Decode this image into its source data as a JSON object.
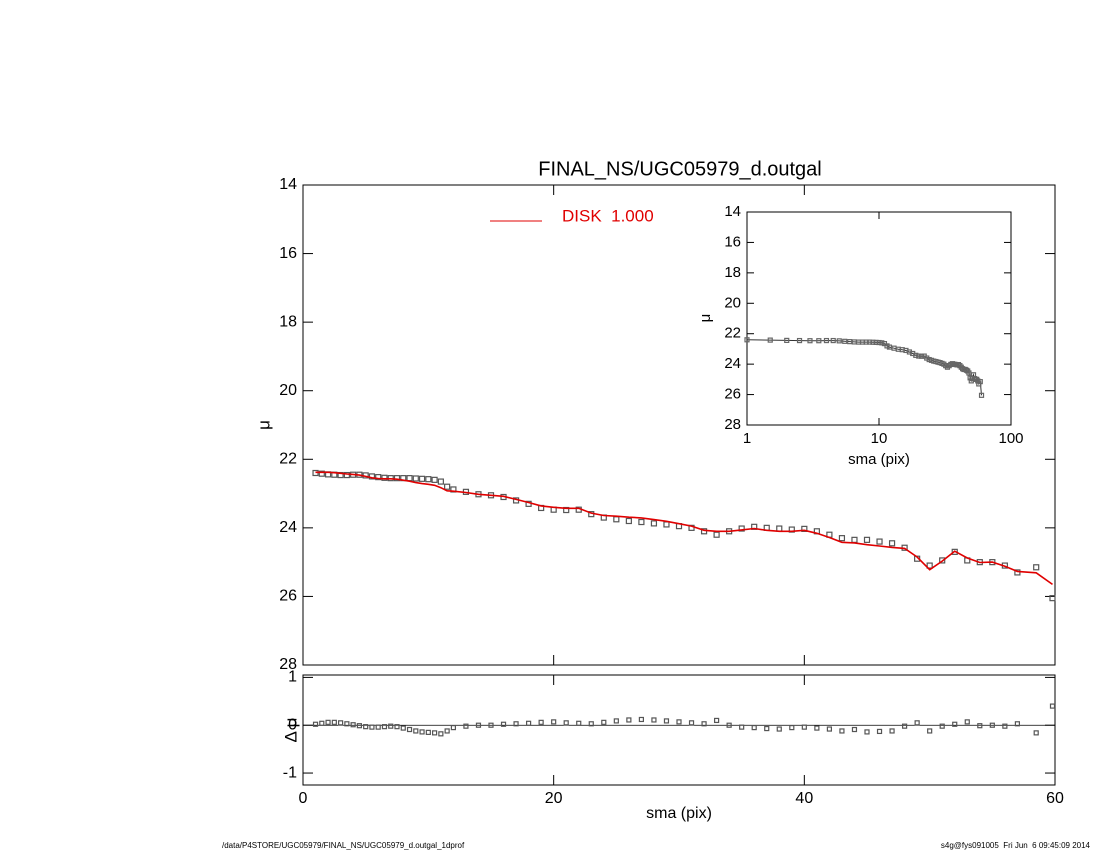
{
  "footer": {
    "left": "/data/P4STORE/UGC05979/FINAL_NS/UGC05979_d.outgal_1dprof",
    "right": "s4g@fys091005  Fri Jun  6 09:45:09 2014"
  },
  "chart_data": [
    {
      "type": "scatter",
      "title": "FINAL_NS/UGC05979_d.outgal",
      "ylabel": "μ",
      "xlim": [
        0,
        60
      ],
      "xticks": [
        0,
        20,
        40,
        60
      ],
      "xtick_labels": false,
      "ylim": [
        28,
        14
      ],
      "yticks": [
        14,
        16,
        18,
        20,
        22,
        24,
        26,
        28
      ],
      "legend": "top-center",
      "x": [
        1,
        1.5,
        2,
        2.5,
        3,
        3.5,
        4,
        4.5,
        5,
        5.5,
        6,
        6.5,
        7,
        7.5,
        8,
        8.5,
        9,
        9.5,
        10,
        10.5,
        11,
        11.5,
        12,
        13,
        14,
        15,
        16,
        17,
        18,
        19,
        20,
        21,
        22,
        23,
        24,
        25,
        26,
        27,
        28,
        29,
        30,
        31,
        32,
        33,
        34,
        35,
        36,
        37,
        38,
        39,
        40,
        41,
        42,
        43,
        44,
        45,
        46,
        47,
        48,
        49,
        50,
        51,
        52,
        53,
        54,
        55,
        56,
        57,
        58.5,
        59.8
      ],
      "series": [
        {
          "color": "#555555",
          "marker": "square",
          "values": [
            22.4,
            22.42,
            22.44,
            22.45,
            22.46,
            22.46,
            22.45,
            22.45,
            22.47,
            22.5,
            22.52,
            22.54,
            22.55,
            22.55,
            22.55,
            22.55,
            22.56,
            22.57,
            22.58,
            22.6,
            22.65,
            22.8,
            22.88,
            22.95,
            23.02,
            23.05,
            23.1,
            23.2,
            23.3,
            23.42,
            23.47,
            23.48,
            23.47,
            23.6,
            23.7,
            23.75,
            23.8,
            23.83,
            23.87,
            23.9,
            23.95,
            24.0,
            24.1,
            24.2,
            24.1,
            24.02,
            23.97,
            24.0,
            24.02,
            24.05,
            24.03,
            24.1,
            24.2,
            24.3,
            24.35,
            24.35,
            24.4,
            24.45,
            24.58,
            24.9,
            25.1,
            24.95,
            24.7,
            24.95,
            25.0,
            25.0,
            25.1,
            25.3,
            25.15,
            26.05
          ]
        },
        {
          "name": "DISK  1.000",
          "color": "#e00000",
          "marker": "line",
          "values": [
            22.38,
            22.38,
            22.38,
            22.39,
            22.41,
            22.43,
            22.44,
            22.46,
            22.5,
            22.54,
            22.56,
            22.57,
            22.57,
            22.58,
            22.61,
            22.64,
            22.68,
            22.71,
            22.73,
            22.76,
            22.83,
            22.92,
            22.93,
            22.97,
            23.02,
            23.05,
            23.08,
            23.17,
            23.26,
            23.36,
            23.4,
            23.43,
            23.43,
            23.57,
            23.64,
            23.66,
            23.69,
            23.71,
            23.76,
            23.81,
            23.88,
            23.95,
            24.07,
            24.1,
            24.1,
            24.06,
            24.02,
            24.07,
            24.1,
            24.1,
            24.07,
            24.16,
            24.28,
            24.42,
            24.44,
            24.49,
            24.53,
            24.57,
            24.6,
            24.85,
            25.22,
            24.97,
            24.68,
            24.88,
            25.01,
            25.0,
            25.12,
            25.27,
            25.31,
            25.65
          ]
        }
      ]
    },
    {
      "type": "scatter",
      "xlabel": "sma (pix)",
      "ylabel": "Δ μ",
      "xlim": [
        0,
        60
      ],
      "xticks": [
        0,
        20,
        40,
        60
      ],
      "ylim": [
        -1.25,
        1.05
      ],
      "yticks": [
        -1,
        0,
        1
      ],
      "zero_line": true,
      "color": "#555555",
      "values": [
        0.02,
        0.04,
        0.06,
        0.06,
        0.05,
        0.03,
        0.01,
        -0.01,
        -0.03,
        -0.04,
        -0.04,
        -0.03,
        -0.02,
        -0.03,
        -0.06,
        -0.09,
        -0.12,
        -0.14,
        -0.15,
        -0.16,
        -0.18,
        -0.12,
        -0.05,
        -0.02,
        0.0,
        0.0,
        0.02,
        0.03,
        0.04,
        0.06,
        0.07,
        0.05,
        0.04,
        0.03,
        0.06,
        0.09,
        0.11,
        0.12,
        0.11,
        0.09,
        0.07,
        0.05,
        0.03,
        0.1,
        0.0,
        -0.04,
        -0.05,
        -0.07,
        -0.08,
        -0.05,
        -0.04,
        -0.06,
        -0.08,
        -0.12,
        -0.09,
        -0.14,
        -0.13,
        -0.12,
        -0.02,
        0.05,
        -0.12,
        -0.02,
        0.02,
        0.07,
        -0.01,
        0.0,
        -0.02,
        0.03,
        -0.16,
        0.4
      ]
    },
    {
      "type": "scatter",
      "xlabel": "sma (pix)",
      "ylabel": "μ",
      "log_x": true,
      "xlim": [
        1,
        100
      ],
      "xticks": [
        1,
        10,
        100
      ],
      "ylim": [
        28,
        14
      ],
      "yticks": [
        14,
        16,
        18,
        20,
        22,
        24,
        26,
        28
      ],
      "color": "#333333"
    }
  ]
}
